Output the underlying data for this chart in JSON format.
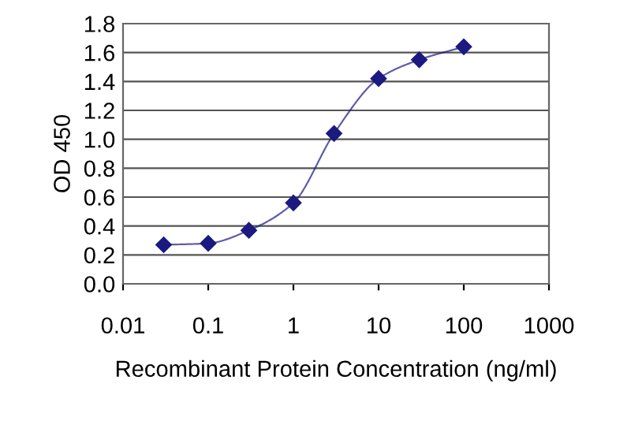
{
  "chart_data": {
    "type": "line",
    "xlabel": "Recombinant Protein Concentration (ng/ml)",
    "ylabel": "OD 450",
    "log": "x",
    "x": [
      0.03,
      0.1,
      0.3,
      1,
      3,
      10,
      30,
      100
    ],
    "series": [
      {
        "color": "#1a1a80",
        "values": [
          0.27,
          0.28,
          0.37,
          0.56,
          1.04,
          1.42,
          1.55,
          1.64
        ]
      }
    ],
    "marker": "diamond",
    "line_style": "solid",
    "grid": "y",
    "legend": false,
    "xlim": [
      0.01,
      1000
    ],
    "xticks": [
      0.01,
      0.1,
      1,
      10,
      100,
      1000
    ],
    "ylim": [
      0,
      1.8
    ],
    "yticks": [
      {
        "value": 0,
        "label": "0.0"
      },
      0.2,
      0.4,
      0.6,
      0.8,
      {
        "value": 1,
        "label": "1.0"
      },
      1.2,
      1.4,
      1.6,
      1.8
    ]
  }
}
